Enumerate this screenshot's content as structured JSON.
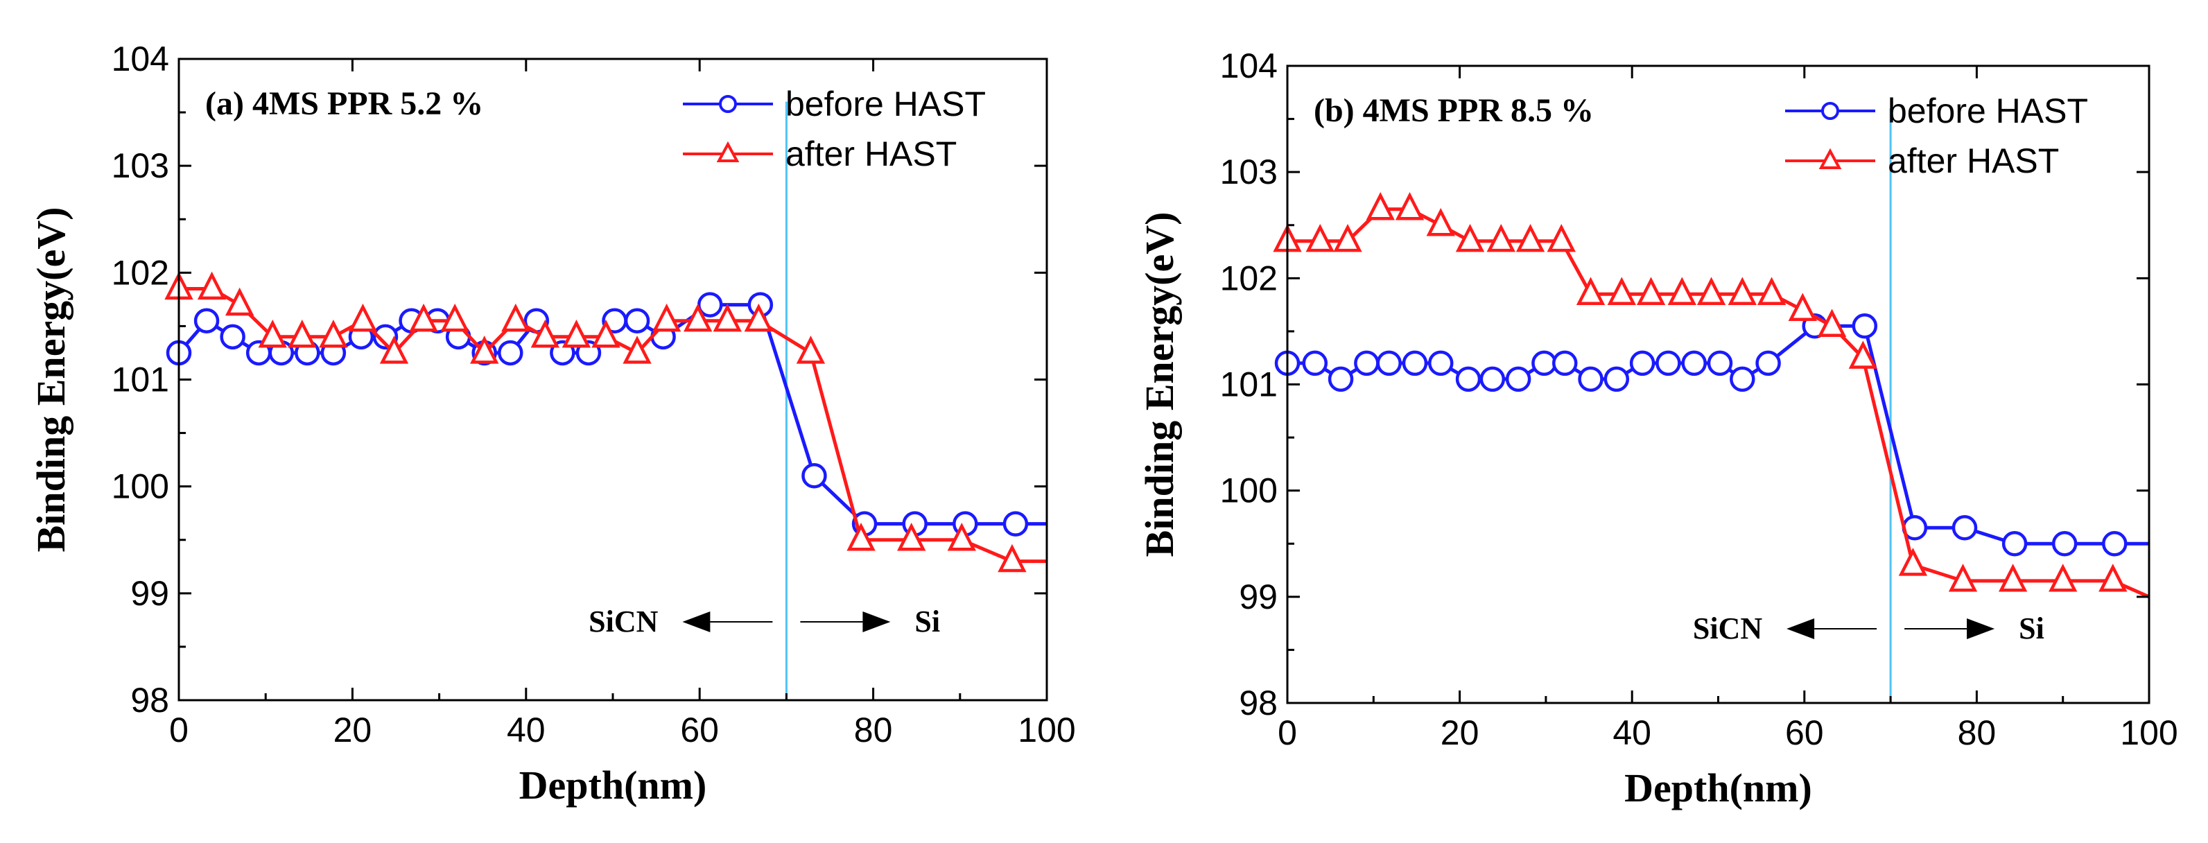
{
  "chart_data": [
    {
      "type": "line",
      "title": "(a) 4MS PPR 5.2 %",
      "xlabel": "Depth(nm)",
      "ylabel": "Binding Energy(eV)",
      "xlim": [
        0,
        100
      ],
      "ylim": [
        98,
        104
      ],
      "xticks": [
        0,
        20,
        40,
        60,
        80,
        100
      ],
      "yticks": [
        98,
        99,
        100,
        101,
        102,
        103,
        104
      ],
      "interface_x": 70,
      "annotations": {
        "left": "SiCN",
        "right": "Si"
      },
      "series": [
        {
          "name": "before HAST",
          "color": "#1a1aff",
          "marker": "circle",
          "x": [
            0,
            3.2,
            6.2,
            9.2,
            11.8,
            14.8,
            17.8,
            21,
            23.8,
            26.8,
            29.8,
            32.2,
            35.2,
            38.2,
            41.2,
            44.2,
            47.2,
            50.2,
            52.8,
            55.8,
            61.2,
            67,
            73.2,
            79,
            84.8,
            90.6,
            96.4,
            100
          ],
          "y": [
            101.25,
            101.55,
            101.4,
            101.25,
            101.25,
            101.25,
            101.25,
            101.4,
            101.4,
            101.55,
            101.55,
            101.4,
            101.25,
            101.25,
            101.55,
            101.25,
            101.25,
            101.55,
            101.55,
            101.4,
            101.7,
            101.7,
            100.1,
            99.65,
            99.65,
            99.65,
            99.65,
            99.65
          ]
        },
        {
          "name": "after  HAST",
          "color": "#ff1a1a",
          "marker": "triangle",
          "x": [
            0,
            3.8,
            7,
            10.8,
            14.2,
            17.8,
            21.2,
            24.8,
            28.2,
            31.8,
            35.2,
            38.8,
            42.2,
            45.8,
            49.2,
            52.8,
            56.2,
            59.8,
            63.2,
            66.8,
            72.8,
            78.6,
            84.4,
            90.2,
            96,
            100
          ],
          "y": [
            101.85,
            101.85,
            101.7,
            101.4,
            101.4,
            101.4,
            101.55,
            101.25,
            101.55,
            101.55,
            101.25,
            101.55,
            101.4,
            101.4,
            101.4,
            101.25,
            101.55,
            101.55,
            101.55,
            101.55,
            101.25,
            99.5,
            99.5,
            99.5,
            99.3,
            99.3
          ]
        }
      ],
      "legend": "top-right"
    },
    {
      "type": "line",
      "title": "(b) 4MS PPR 8.5 %",
      "xlabel": "Depth(nm)",
      "ylabel": "Binding Energy(eV)",
      "xlim": [
        0,
        100
      ],
      "ylim": [
        98,
        104
      ],
      "xticks": [
        0,
        20,
        40,
        60,
        80,
        100
      ],
      "yticks": [
        98,
        99,
        100,
        101,
        102,
        103,
        104
      ],
      "interface_x": 70,
      "annotations": {
        "left": "SiCN",
        "right": "Si"
      },
      "series": [
        {
          "name": "before HAST",
          "color": "#1a1aff",
          "marker": "circle",
          "x": [
            0,
            3.2,
            6.2,
            9.2,
            11.8,
            14.8,
            17.8,
            21,
            23.8,
            26.8,
            29.8,
            32.2,
            35.2,
            38.2,
            41.2,
            44.2,
            47.2,
            50.2,
            52.8,
            55.8,
            61.2,
            67,
            72.8,
            78.6,
            84.4,
            90.2,
            96,
            100
          ],
          "y": [
            101.2,
            101.2,
            101.05,
            101.2,
            101.2,
            101.2,
            101.2,
            101.05,
            101.05,
            101.05,
            101.2,
            101.2,
            101.05,
            101.05,
            101.2,
            101.2,
            101.2,
            101.2,
            101.05,
            101.2,
            101.55,
            101.55,
            99.65,
            99.65,
            99.5,
            99.5,
            99.5,
            99.5
          ]
        },
        {
          "name": "after  HAST",
          "color": "#ff1a1a",
          "marker": "triangle",
          "x": [
            0,
            3.8,
            7,
            10.8,
            14.2,
            17.8,
            21.2,
            24.8,
            28.2,
            31.8,
            35.2,
            38.8,
            42.2,
            45.8,
            49.2,
            52.8,
            56.2,
            59.8,
            63.2,
            66.8,
            72.6,
            78.4,
            84.2,
            90,
            95.8,
            100
          ],
          "y": [
            102.35,
            102.35,
            102.35,
            102.65,
            102.65,
            102.5,
            102.35,
            102.35,
            102.35,
            102.35,
            101.85,
            101.85,
            101.85,
            101.85,
            101.85,
            101.85,
            101.85,
            101.7,
            101.55,
            101.25,
            99.3,
            99.15,
            99.15,
            99.15,
            99.15,
            99.0
          ]
        }
      ],
      "legend": "top-right"
    }
  ]
}
